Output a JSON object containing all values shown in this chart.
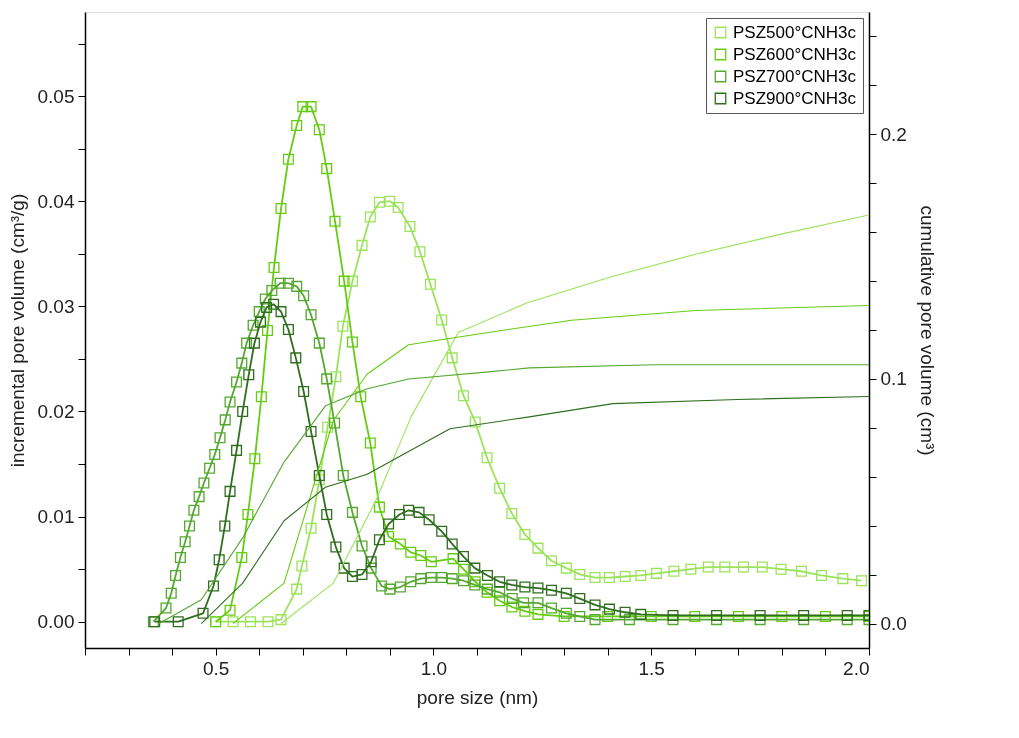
{
  "chart_data": {
    "type": "line",
    "xlabel": "pore size (nm)",
    "ylabel": "incremental pore volume (cm³/g)",
    "y2label": "cumulative pore volume (cm³)",
    "xlim": [
      0.2,
      2.0
    ],
    "ylim": [
      -0.0025,
      0.058
    ],
    "y2lim": [
      -0.01,
      0.25
    ],
    "xticks": [
      {
        "value": 0.2,
        "label": null
      },
      {
        "value": 0.3,
        "label": null
      },
      {
        "value": 0.4,
        "label": null
      },
      0.5,
      {
        "value": 0.6,
        "label": null
      },
      {
        "value": 0.7,
        "label": null
      },
      {
        "value": 0.8,
        "label": null
      },
      {
        "value": 0.9,
        "label": null
      },
      {
        "value": 1.0,
        "label": "1.0"
      },
      {
        "value": 1.1,
        "label": null
      },
      {
        "value": 1.2,
        "label": null
      },
      {
        "value": 1.3,
        "label": null
      },
      {
        "value": 1.4,
        "label": null
      },
      1.5,
      {
        "value": 1.6,
        "label": null
      },
      {
        "value": 1.7,
        "label": null
      },
      {
        "value": 1.8,
        "label": null
      },
      {
        "value": 1.9,
        "label": null
      },
      {
        "value": 2.0,
        "label": "2.0"
      }
    ],
    "yticks": [
      {
        "value": 0,
        "label": "0.00"
      },
      {
        "value": 0.005,
        "label": null
      },
      0.01,
      {
        "value": 0.015,
        "label": null
      },
      0.02,
      {
        "value": 0.025,
        "label": null
      },
      0.03,
      {
        "value": 0.035,
        "label": null
      },
      0.04,
      {
        "value": 0.045,
        "label": null
      },
      0.05,
      {
        "value": 0.055,
        "label": null
      }
    ],
    "y2ticks": [
      {
        "value": 0,
        "label": "0.0"
      },
      {
        "value": 0.02,
        "label": null
      },
      {
        "value": 0.04,
        "label": null
      },
      {
        "value": 0.06,
        "label": null
      },
      {
        "value": 0.08,
        "label": null
      },
      0.1,
      {
        "value": 0.12,
        "label": null
      },
      {
        "value": 0.14,
        "label": null
      },
      {
        "value": 0.16,
        "label": null
      },
      {
        "value": 0.18,
        "label": null
      },
      0.2,
      {
        "value": 0.22,
        "label": null
      },
      {
        "value": 0.24,
        "label": null
      }
    ],
    "legend": "top right",
    "marker": "square",
    "line_style": "solid",
    "series": [
      {
        "name": "PSZ500°CNH3c",
        "color": "#9be35a",
        "x": [
          0.5,
          0.54,
          0.58,
          0.62,
          0.65,
          0.686,
          0.698,
          0.719,
          0.738,
          0.757,
          0.776,
          0.792,
          0.814,
          0.836,
          0.855,
          0.876,
          0.9,
          0.919,
          0.946,
          0.969,
          0.993,
          1.019,
          1.043,
          1.069,
          1.096,
          1.123,
          1.152,
          1.18,
          1.21,
          1.24,
          1.271,
          1.305,
          1.336,
          1.371,
          1.404,
          1.44,
          1.476,
          1.512,
          1.552,
          1.591,
          1.631,
          1.669,
          1.712,
          1.755,
          1.798,
          1.845,
          1.891,
          1.94,
          1.983
        ],
        "values": [
          0,
          0,
          0,
          0,
          0.0002,
          0.0031,
          0.0053,
          0.0089,
          0.0135,
          0.0185,
          0.0233,
          0.0281,
          0.0324,
          0.0358,
          0.0385,
          0.0399,
          0.04,
          0.0394,
          0.0376,
          0.0352,
          0.0321,
          0.0287,
          0.0251,
          0.0215,
          0.019,
          0.0156,
          0.0127,
          0.0103,
          0.0083,
          0.007,
          0.0058,
          0.0051,
          0.0045,
          0.0042,
          0.0042,
          0.0043,
          0.0044,
          0.0046,
          0.0048,
          0.005,
          0.0052,
          0.0052,
          0.0052,
          0.0052,
          0.005,
          0.0048,
          0.0044,
          0.0041,
          0.0039
        ]
      },
      {
        "name": "PSZ600°CNH3c",
        "color": "#66cc11",
        "x": [
          0.5,
          0.533,
          0.56,
          0.574,
          0.59,
          0.605,
          0.619,
          0.634,
          0.65,
          0.667,
          0.686,
          0.7,
          0.719,
          0.738,
          0.755,
          0.774,
          0.795,
          0.814,
          0.833,
          0.855,
          0.876,
          0.897,
          0.924,
          0.948,
          0.971,
          0.995,
          1.045,
          1.069,
          1.096,
          1.123,
          1.152,
          1.18,
          1.21,
          1.24,
          1.3,
          1.4,
          1.5,
          1.6,
          1.7,
          1.8,
          1.9,
          2.0
        ],
        "values": [
          0,
          0.0011,
          0.0061,
          0.0102,
          0.0155,
          0.0214,
          0.0277,
          0.0337,
          0.0393,
          0.044,
          0.0472,
          0.049,
          0.049,
          0.0468,
          0.0431,
          0.0381,
          0.0324,
          0.0266,
          0.0214,
          0.017,
          0.0109,
          0.0081,
          0.0074,
          0.0066,
          0.0063,
          0.0057,
          0.006,
          0.005,
          0.0038,
          0.0028,
          0.002,
          0.0014,
          0.001,
          0.0007,
          0.0005,
          0.0005,
          0.0005,
          0.0005,
          0.0005,
          0.0005,
          0.0005,
          0.0005
        ]
      },
      {
        "name": "PSZ700°CNH3c",
        "color": "#55a830",
        "x": [
          0.357,
          0.386,
          0.398,
          0.408,
          0.419,
          0.43,
          0.44,
          0.45,
          0.462,
          0.473,
          0.486,
          0.498,
          0.51,
          0.522,
          0.533,
          0.548,
          0.56,
          0.571,
          0.586,
          0.6,
          0.614,
          0.629,
          0.648,
          0.667,
          0.686,
          0.702,
          0.719,
          0.738,
          0.755,
          0.773,
          0.793,
          0.814,
          0.836,
          0.857,
          0.881,
          0.9,
          0.924,
          0.948,
          0.971,
          0.995,
          1.019,
          1.043,
          1.069,
          1.095,
          1.124,
          1.152,
          1.181,
          1.207,
          1.24,
          1.271,
          1.305,
          1.336,
          1.371,
          1.45,
          1.55,
          1.65,
          1.75,
          1.85,
          1.95,
          2.0
        ],
        "values": [
          0,
          0.0013,
          0.0027,
          0.0044,
          0.0061,
          0.0076,
          0.0091,
          0.0106,
          0.0119,
          0.0132,
          0.0146,
          0.0159,
          0.0175,
          0.0192,
          0.0209,
          0.0228,
          0.0246,
          0.0265,
          0.0282,
          0.0295,
          0.0307,
          0.0315,
          0.0322,
          0.0322,
          0.0319,
          0.031,
          0.0292,
          0.0265,
          0.0231,
          0.0189,
          0.0139,
          0.0104,
          0.0072,
          0.0051,
          0.0034,
          0.0031,
          0.0033,
          0.0038,
          0.0041,
          0.0042,
          0.0042,
          0.0041,
          0.0039,
          0.0035,
          0.0031,
          0.0028,
          0.0022,
          0.0018,
          0.0018,
          0.0013,
          0.0008,
          0.0005,
          0.0002,
          0.0002,
          0.0002,
          0.0002,
          0.0002,
          0.0002,
          0.0002,
          0.0002
        ]
      },
      {
        "name": "PSZ900°CNH3c",
        "color": "#2f6e1e",
        "x": [
          0.36,
          0.414,
          0.471,
          0.495,
          0.508,
          0.521,
          0.533,
          0.548,
          0.562,
          0.576,
          0.589,
          0.603,
          0.617,
          0.633,
          0.65,
          0.667,
          0.684,
          0.702,
          0.719,
          0.738,
          0.755,
          0.776,
          0.795,
          0.814,
          0.836,
          0.857,
          0.876,
          0.897,
          0.922,
          0.943,
          0.967,
          0.99,
          1.019,
          1.043,
          1.069,
          1.095,
          1.124,
          1.152,
          1.18,
          1.21,
          1.24,
          1.271,
          1.305,
          1.336,
          1.371,
          1.404,
          1.44,
          1.476,
          1.55,
          1.65,
          1.75,
          1.85,
          1.95,
          2.0
        ],
        "values": [
          0,
          0,
          0.0008,
          0.0034,
          0.0059,
          0.0091,
          0.0124,
          0.0163,
          0.02,
          0.0235,
          0.0265,
          0.0285,
          0.0299,
          0.0302,
          0.0295,
          0.0278,
          0.0251,
          0.0219,
          0.0181,
          0.0139,
          0.0102,
          0.0071,
          0.0051,
          0.0043,
          0.0045,
          0.0057,
          0.0078,
          0.0093,
          0.0102,
          0.0106,
          0.0104,
          0.0097,
          0.0086,
          0.0074,
          0.0062,
          0.0051,
          0.0044,
          0.0038,
          0.0035,
          0.0033,
          0.0032,
          0.003,
          0.0027,
          0.0022,
          0.0016,
          0.0012,
          0.0009,
          0.0007,
          0.0006,
          0.0006,
          0.0006,
          0.0006,
          0.0006,
          0.0006
        ]
      },
      {
        "axis": "y2",
        "marker": "none",
        "color": "#9be35a",
        "x": [
          0.65,
          0.77,
          0.867,
          0.95,
          1.057,
          1.214,
          1.412,
          1.602,
          1.793,
          2.0
        ],
        "values": [
          0,
          0.0165,
          0.05,
          0.085,
          0.119,
          0.131,
          0.142,
          0.151,
          0.159,
          0.167
        ]
      },
      {
        "axis": "y2",
        "marker": "none",
        "color": "#66cc11",
        "x": [
          0.54,
          0.657,
          0.714,
          0.77,
          0.848,
          0.943,
          1.126,
          1.317,
          1.602,
          2.0
        ],
        "values": [
          0,
          0.0165,
          0.05,
          0.083,
          0.102,
          0.114,
          0.119,
          0.124,
          0.128,
          0.13
        ]
      },
      {
        "axis": "y2",
        "marker": "none",
        "color": "#55a830",
        "x": [
          0.37,
          0.467,
          0.562,
          0.657,
          0.752,
          0.848,
          0.943,
          1.133,
          1.22,
          1.507,
          2.0
        ],
        "values": [
          0,
          0.0097,
          0.035,
          0.066,
          0.089,
          0.096,
          0.1,
          0.103,
          0.1045,
          0.1058,
          0.1058
        ]
      },
      {
        "axis": "y2",
        "marker": "none",
        "color": "#2f6e1e",
        "x": [
          0.467,
          0.562,
          0.657,
          0.752,
          0.848,
          0.924,
          1.038,
          1.22,
          1.412,
          1.698,
          2.0
        ],
        "values": [
          0,
          0.0165,
          0.042,
          0.0557,
          0.061,
          0.0685,
          0.0796,
          0.0845,
          0.0899,
          0.0916,
          0.0928
        ]
      }
    ]
  }
}
